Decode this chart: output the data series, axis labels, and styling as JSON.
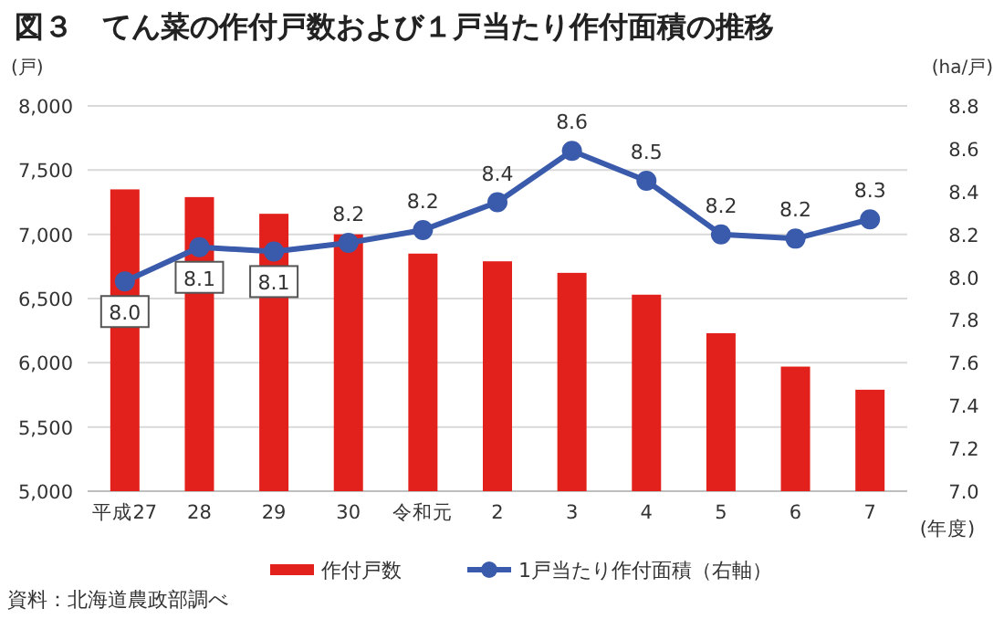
{
  "chart_data": {
    "type": "bar",
    "title": "図３　てん菜の作付戸数および１戸当たり作付面積の推移",
    "categories": [
      "平成27",
      "28",
      "29",
      "30",
      "令和元",
      "2",
      "3",
      "4",
      "5",
      "6",
      "7"
    ],
    "xlabel": "(年度)",
    "ylabel": "(戸)",
    "y2label": "(ha/戸)",
    "series": [
      {
        "name": "作付戸数",
        "color": "#e3211c",
        "values": [
          7350,
          7290,
          7160,
          7000,
          6850,
          6790,
          6700,
          6530,
          6230,
          5970,
          5790
        ]
      },
      {
        "name": "1戸当たり作付面積（右軸）",
        "type": "line",
        "axis": "y2",
        "color": "#3a5bab",
        "marker": "circle",
        "values": [
          7.98,
          8.14,
          8.12,
          8.16,
          8.22,
          8.35,
          8.59,
          8.45,
          8.2,
          8.18,
          8.27
        ],
        "value_labels": [
          "8.0",
          "8.1",
          "8.1",
          "8.2",
          "8.2",
          "8.4",
          "8.6",
          "8.5",
          "8.2",
          "8.2",
          "8.3"
        ]
      }
    ],
    "ylim": [
      5000,
      8000
    ],
    "yticks": [
      {
        "value": 5000,
        "label": "5,000"
      },
      {
        "value": 5500,
        "label": "5,500"
      },
      {
        "value": 6000,
        "label": "6,000"
      },
      {
        "value": 6500,
        "label": "6,500"
      },
      {
        "value": 7000,
        "label": "7,000"
      },
      {
        "value": 7500,
        "label": "7,500"
      },
      {
        "value": 8000,
        "label": "8,000"
      }
    ],
    "y2lim": [
      7,
      8.8
    ],
    "y2ticks": [
      {
        "value": 7,
        "label": "7.0"
      },
      7.2,
      7.4,
      7.6,
      7.8,
      {
        "value": 8,
        "label": "8.0"
      },
      8.2,
      8.4,
      8.6,
      8.8
    ],
    "grid": "y",
    "legend": "bottom",
    "annotations": [
      "資料：北海道農政部調べ"
    ]
  }
}
